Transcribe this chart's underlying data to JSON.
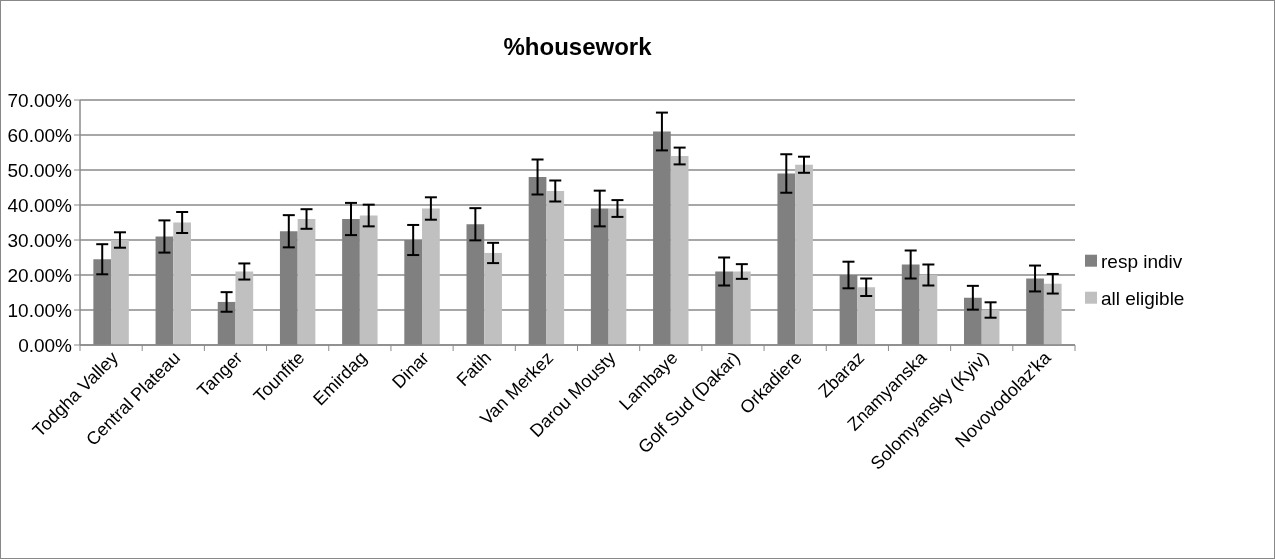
{
  "chart_data": {
    "type": "bar",
    "title": "%housework",
    "categories": [
      "Todgha Valley",
      "Central Plateau",
      "Tanger",
      "Tounfite",
      "Emirdag",
      "Dinar",
      "Fatih",
      "Van Merkez",
      "Darou Mousty",
      "Lambaye",
      "Golf Sud (Dakar)",
      "Orkadiere",
      "Zbaraz",
      "Znamyanska",
      "Solomyansky (Kyiv)",
      "Novovodolaz'ka"
    ],
    "series": [
      {
        "name": "resp indiv",
        "color": "#808080",
        "values": [
          24.5,
          31,
          12.3,
          32.5,
          36,
          30,
          34.5,
          48,
          39,
          61,
          21,
          49,
          20,
          23,
          13.5,
          19
        ],
        "errors": [
          4.3,
          4.6,
          2.8,
          4.6,
          4.6,
          4.3,
          4.6,
          5,
          5.1,
          5.4,
          4,
          5.5,
          3.8,
          4,
          3.4,
          3.7
        ]
      },
      {
        "name": "all eligible",
        "color": "#c0c0c0",
        "values": [
          30,
          35,
          21,
          36,
          37,
          39,
          26.3,
          44,
          39,
          54,
          21,
          51.5,
          16.5,
          20,
          10,
          17.5
        ],
        "errors": [
          2.2,
          3,
          2.3,
          2.8,
          3.1,
          3.2,
          2.9,
          3,
          2.4,
          2.4,
          2.1,
          2.3,
          2.5,
          3,
          2.2,
          2.8
        ]
      }
    ],
    "ylim": [
      0,
      70
    ],
    "yticks": [
      {
        "value": 0,
        "label": "0.00%"
      },
      {
        "value": 10,
        "label": "10.00%"
      },
      {
        "value": 20,
        "label": "20.00%"
      },
      {
        "value": 30,
        "label": "30.00%"
      },
      {
        "value": 40,
        "label": "40.00%"
      },
      {
        "value": 50,
        "label": "50.00%"
      },
      {
        "value": 60,
        "label": "60.00%"
      },
      {
        "value": 70,
        "label": "70.00%"
      }
    ],
    "grid": "y",
    "legend": "right"
  }
}
